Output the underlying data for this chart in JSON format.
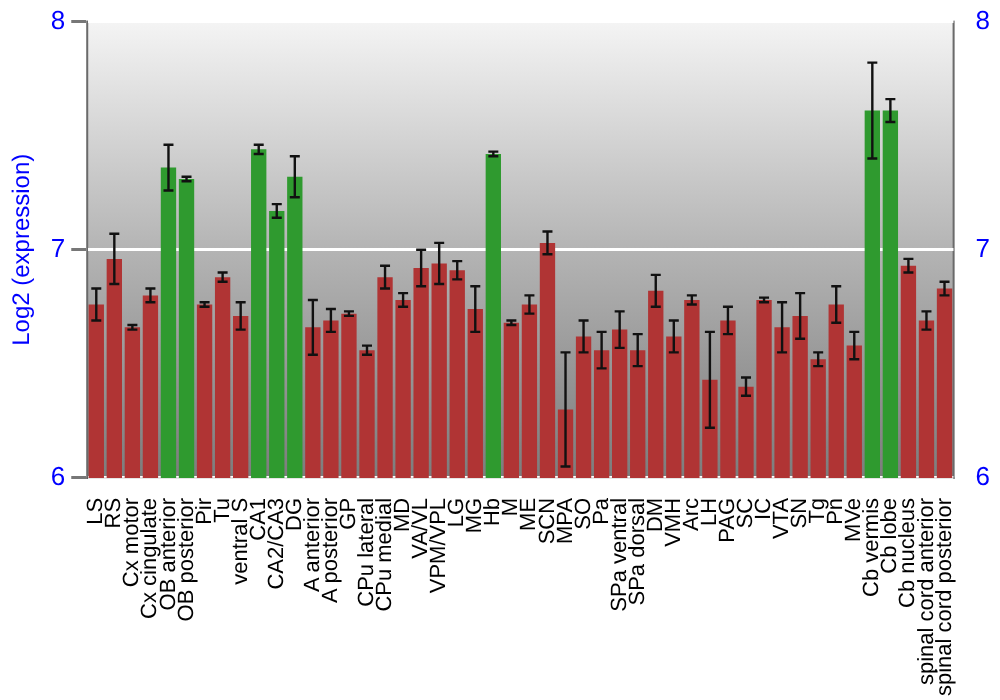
{
  "chart_data": {
    "type": "bar",
    "ylabel": "Log2 (expression)",
    "categories": [
      "LS",
      "RS",
      "Cx motor",
      "Cx cingulate",
      "OB anterior",
      "OB posterior",
      "Pir",
      "Tu",
      "ventral S",
      "CA1",
      "CA2/CA3",
      "DG",
      "A anterior",
      "A posterior",
      "GP",
      "CPu lateral",
      "CPu medial",
      "MD",
      "VA/VL",
      "VPM/VPL",
      "LG",
      "MG",
      "Hb",
      "M",
      "ME",
      "SCN",
      "MPA",
      "SO",
      "Pa",
      "SPa ventral",
      "SPa dorsal",
      "DM",
      "VMH",
      "Arc",
      "LH",
      "PAG",
      "SC",
      "IC",
      "VTA",
      "SN",
      "Tg",
      "Pn",
      "MVe",
      "Cb vermis",
      "Cb lobe",
      "Cb nucleus",
      "spinal cord anterior",
      "spinal cord posterior"
    ],
    "values": [
      6.76,
      6.96,
      6.66,
      6.8,
      7.36,
      7.31,
      6.76,
      6.88,
      6.71,
      7.44,
      7.17,
      7.32,
      6.66,
      6.69,
      6.72,
      6.56,
      6.88,
      6.78,
      6.92,
      6.94,
      6.91,
      6.74,
      7.42,
      6.68,
      6.76,
      7.03,
      6.3,
      6.62,
      6.56,
      6.65,
      6.56,
      6.82,
      6.62,
      6.78,
      6.43,
      6.69,
      6.4,
      6.78,
      6.66,
      6.71,
      6.52,
      6.76,
      6.58,
      7.61,
      7.61,
      6.93,
      6.69,
      6.83
    ],
    "errors": [
      0.07,
      0.11,
      0.01,
      0.03,
      0.1,
      0.01,
      0.01,
      0.02,
      0.06,
      0.02,
      0.03,
      0.09,
      0.12,
      0.05,
      0.01,
      0.02,
      0.05,
      0.03,
      0.08,
      0.09,
      0.04,
      0.1,
      0.01,
      0.01,
      0.04,
      0.05,
      0.25,
      0.07,
      0.08,
      0.08,
      0.07,
      0.07,
      0.07,
      0.02,
      0.21,
      0.06,
      0.04,
      0.01,
      0.11,
      0.1,
      0.03,
      0.08,
      0.06,
      0.21,
      0.05,
      0.03,
      0.04,
      0.03
    ],
    "colors": [
      "#b03434",
      "#b03434",
      "#b03434",
      "#b03434",
      "#2f9a2f",
      "#2f9a2f",
      "#b03434",
      "#b03434",
      "#b03434",
      "#2f9a2f",
      "#2f9a2f",
      "#2f9a2f",
      "#b03434",
      "#b03434",
      "#b03434",
      "#b03434",
      "#b03434",
      "#b03434",
      "#b03434",
      "#b03434",
      "#b03434",
      "#b03434",
      "#2f9a2f",
      "#b03434",
      "#b03434",
      "#b03434",
      "#b03434",
      "#b03434",
      "#b03434",
      "#b03434",
      "#b03434",
      "#b03434",
      "#b03434",
      "#b03434",
      "#b03434",
      "#b03434",
      "#b03434",
      "#b03434",
      "#b03434",
      "#b03434",
      "#b03434",
      "#b03434",
      "#b03434",
      "#2f9a2f",
      "#2f9a2f",
      "#b03434",
      "#b03434",
      "#b03434"
    ],
    "ylim": [
      6,
      8
    ],
    "yticks": [
      6,
      7,
      8
    ],
    "y2lim": [
      6,
      8
    ],
    "y2ticks": [
      6,
      7,
      8
    ],
    "grid": "y"
  }
}
